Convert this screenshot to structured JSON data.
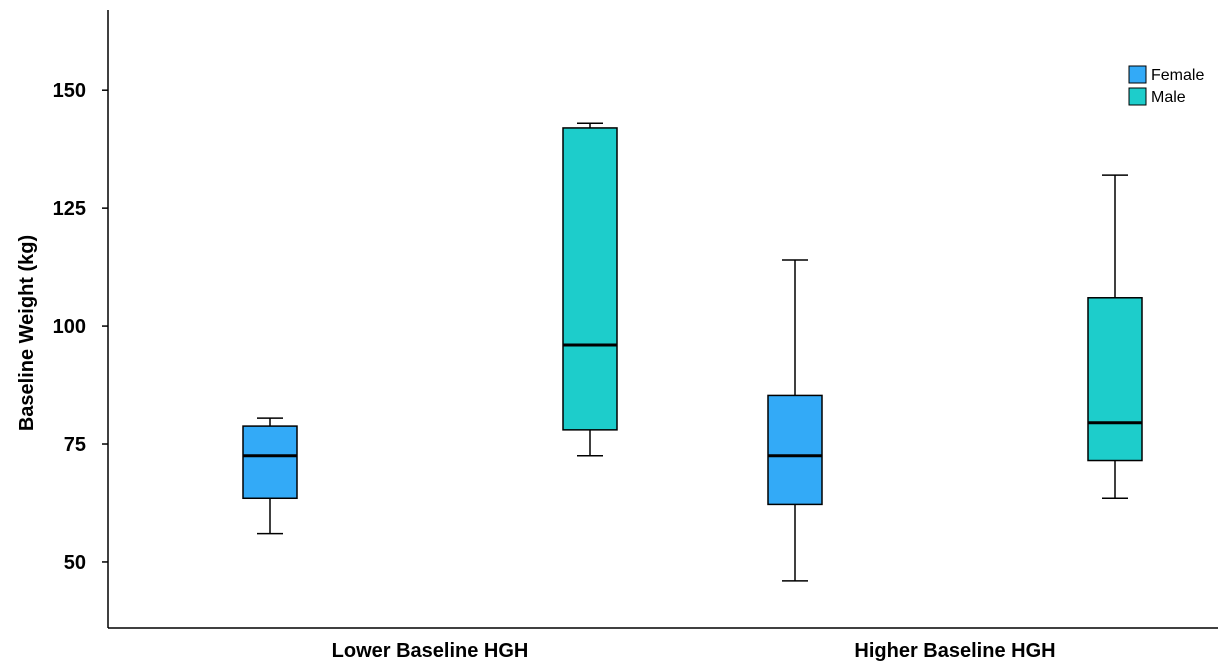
{
  "chart_data": {
    "type": "boxplot",
    "title": "",
    "xlabel": "",
    "ylabel": "Baseline Weight (kg)",
    "ylim": [
      36,
      167
    ],
    "yticks": [
      50,
      75,
      100,
      125,
      150
    ],
    "grid": false,
    "legend_position": "top-right",
    "categories": [
      "Lower Baseline HGH",
      "Higher Baseline HGH"
    ],
    "series": [
      {
        "name": "Female",
        "color": "#33aaf7",
        "boxes": [
          {
            "min": 56,
            "q1": 63.5,
            "median": 72.5,
            "q3": 78.8,
            "max": 80.5
          },
          {
            "min": 46,
            "q1": 62.2,
            "median": 72.5,
            "q3": 85.3,
            "max": 114
          }
        ]
      },
      {
        "name": "Male",
        "color": "#1dcdcb",
        "boxes": [
          {
            "min": 72.5,
            "q1": 78,
            "median": 96,
            "q3": 142,
            "max": 143
          },
          {
            "min": 63.5,
            "q1": 71.5,
            "median": 79.5,
            "q3": 106,
            "max": 132
          }
        ]
      }
    ]
  }
}
